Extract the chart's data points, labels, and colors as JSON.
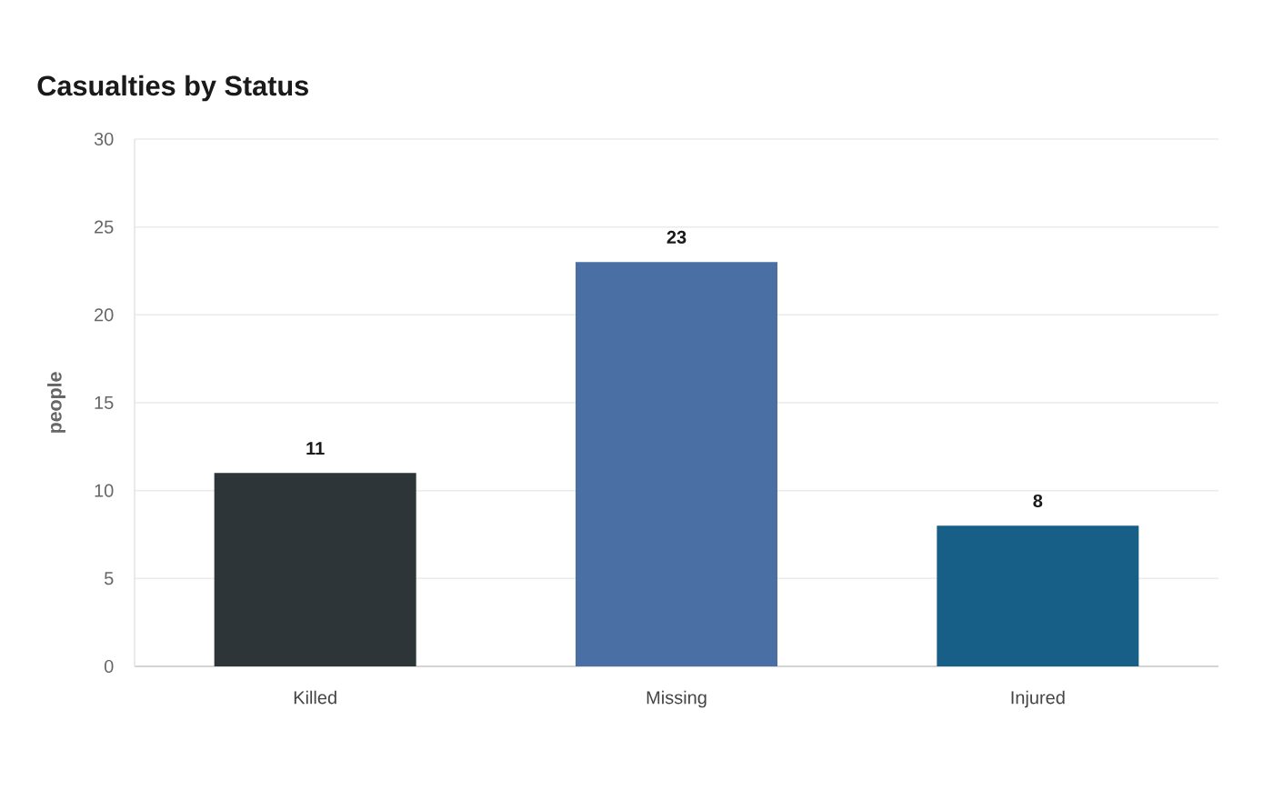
{
  "chart_data": {
    "type": "bar",
    "title": "Casualties by Status",
    "ylabel": "people",
    "categories": [
      "Killed",
      "Missing",
      "Injured"
    ],
    "values": [
      11,
      23,
      8
    ],
    "colors": [
      "#2e3538",
      "#4a6fa5",
      "#185f88"
    ],
    "ylim": [
      0,
      30
    ],
    "yticks": [
      0,
      5,
      10,
      15,
      20,
      25,
      30
    ],
    "grid": "y",
    "data_labels": true
  }
}
